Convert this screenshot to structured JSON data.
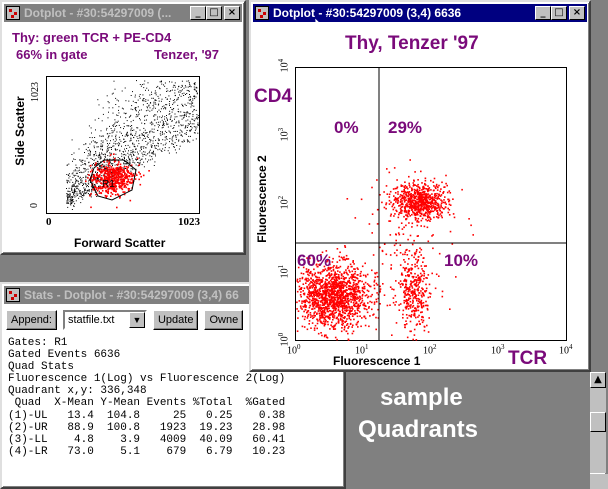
{
  "small_window": {
    "title": "Dotplot - #30:54297009 (...",
    "header_line1": "Thy: green TCR + PE-CD4",
    "header_line2": "66% in gate",
    "header_right": "Tenzer, '97",
    "y_label": "Side Scatter",
    "x_label": "Forward Scatter",
    "y_tick_top": "1023",
    "y_tick_bottom": "0",
    "x_tick_left": "0",
    "x_tick_right": "1023",
    "gate_label": "R1"
  },
  "main_window": {
    "title": "Dotplot - #30:54297009 (3,4) 6636",
    "plot_title": "Thy, Tenzer '97",
    "cd4_label": "CD4",
    "tcr_label": "TCR",
    "y_label": "Fluorescence 2",
    "x_label": "Fluorescence 1",
    "quadrants": {
      "ul": "0%",
      "ur": "29%",
      "ll": "60%",
      "lr": "10%"
    },
    "x_ticks": [
      {
        "base": "10",
        "exp": "0"
      },
      {
        "base": "10",
        "exp": "1"
      },
      {
        "base": "10",
        "exp": "2"
      },
      {
        "base": "10",
        "exp": "3"
      },
      {
        "base": "10",
        "exp": "4"
      }
    ],
    "y_ticks": [
      {
        "base": "10",
        "exp": "0"
      },
      {
        "base": "10",
        "exp": "1"
      },
      {
        "base": "10",
        "exp": "2"
      },
      {
        "base": "10",
        "exp": "3"
      },
      {
        "base": "10",
        "exp": "4"
      }
    ]
  },
  "stats_window": {
    "title": "Stats - Dotplot - #30:54297009 (3,4) 66",
    "append_label": "Append:",
    "file_value": "statfile.txt",
    "update_label": "Update",
    "owner_label": "Owne",
    "lines": [
      "Gates: R1",
      "Gated Events 6636",
      "Quad Stats",
      "Fluorescence 1(Log) vs Fluorescence 2(Log)",
      "Quadrant x,y: 336,348",
      " Quad  X-Mean Y-Mean Events %Total  %Gated",
      "(1)-UL   13.4  104.8     25   0.25    0.38",
      "(2)-UR   88.9  100.8   1923  19.23   28.98",
      "(3)-LL    4.8    3.9   4009  40.09   60.41",
      "(4)-LR   73.0    5.1    679   6.79   10.23"
    ]
  },
  "desktop": {
    "sample_line1": "sample",
    "sample_line2": "Quadrants"
  },
  "colors": {
    "dot_red": "#ff0000",
    "label_purple": "#7a0a7a",
    "title_blue": "#000080"
  }
}
